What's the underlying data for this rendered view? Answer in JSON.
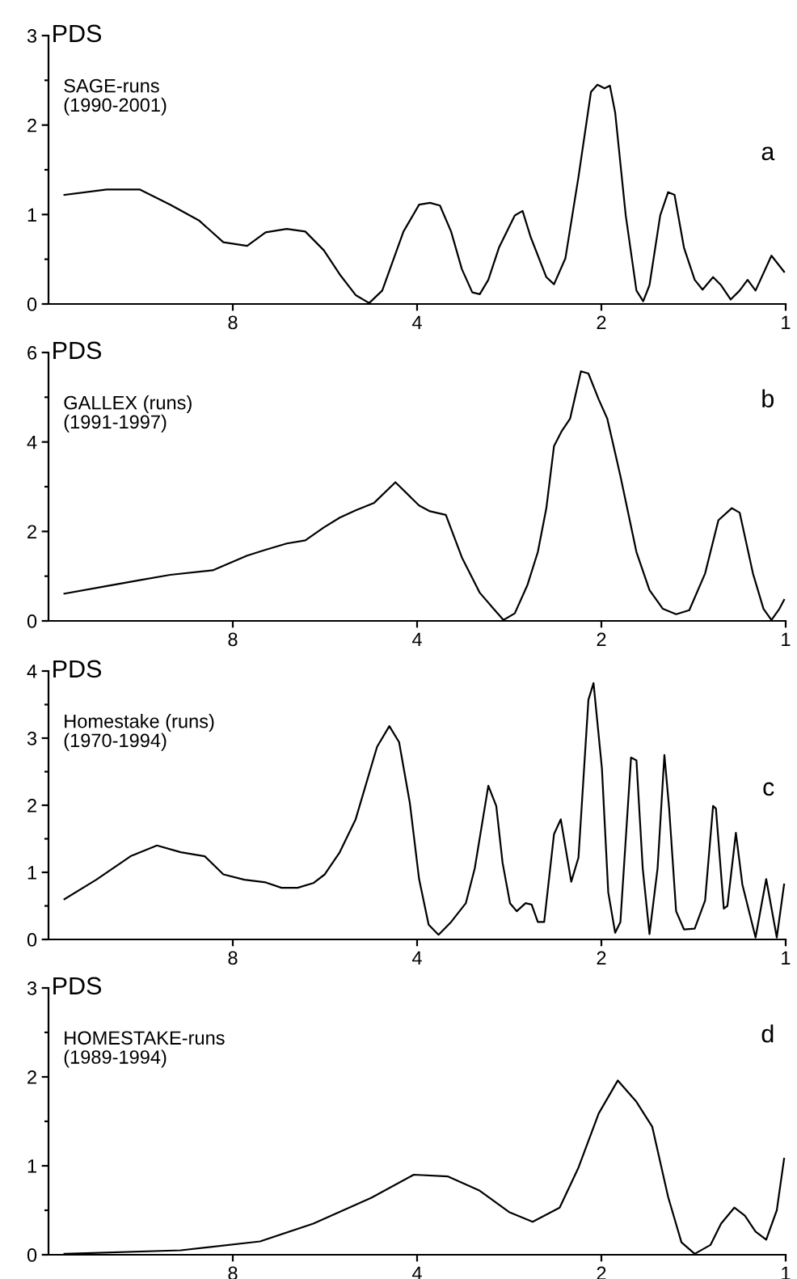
{
  "chart_data": [
    {
      "type": "line",
      "ylabel": "PDS",
      "annotations": [
        "SAGE-runs\n(1990-2001)",
        "a"
      ],
      "xlim": [
        16,
        1
      ],
      "xticks": [
        8,
        4,
        2,
        1
      ],
      "log": "x",
      "ylim": [
        0,
        3
      ],
      "yticks": [
        0,
        {
          "value": 0.5,
          "label": null
        },
        1,
        {
          "value": 1.5,
          "label": null
        },
        2,
        {
          "value": 2.5,
          "label": null
        },
        3
      ],
      "color": "#000000",
      "x": [
        15.07,
        12.85,
        11.36,
        10.12,
        9.07,
        8.29,
        7.58,
        7.07,
        6.53,
        6.09,
        5.68,
        5.35,
        5.04,
        4.79,
        4.56,
        4.21,
        3.97,
        3.81,
        3.67,
        3.52,
        3.38,
        3.25,
        3.16,
        3.06,
        2.94,
        2.77,
        2.69,
        2.61,
        2.46,
        2.39,
        2.29,
        2.18,
        2.08,
        2.03,
        1.976,
        1.937,
        1.899,
        1.825,
        1.753,
        1.709,
        1.669,
        1.603,
        1.556,
        1.519,
        1.466,
        1.408,
        1.367,
        1.314,
        1.275,
        1.23,
        1.189,
        1.154,
        1.12,
        1.055,
        1.006
      ],
      "values": [
        1.22,
        1.28,
        1.28,
        1.11,
        0.93,
        0.69,
        0.65,
        0.8,
        0.84,
        0.81,
        0.6,
        0.33,
        0.1,
        0.01,
        0.15,
        0.81,
        1.11,
        1.13,
        1.1,
        0.81,
        0.39,
        0.13,
        0.11,
        0.27,
        0.63,
        0.99,
        1.04,
        0.75,
        0.3,
        0.22,
        0.51,
        1.42,
        2.37,
        2.45,
        2.41,
        2.44,
        2.14,
        0.99,
        0.15,
        0.03,
        0.21,
        0.99,
        1.25,
        1.22,
        0.63,
        0.27,
        0.16,
        0.3,
        0.21,
        0.05,
        0.15,
        0.27,
        0.15,
        0.54,
        0.36
      ]
    },
    {
      "type": "line",
      "ylabel": "PDS",
      "annotations": [
        "GALLEX (runs)\n(1991-1997)",
        "b"
      ],
      "xlim": [
        16,
        1
      ],
      "xticks": [
        8,
        4,
        2,
        1
      ],
      "log": "x",
      "ylim": [
        0,
        6
      ],
      "yticks": [
        0,
        {
          "value": 1,
          "label": null
        },
        2,
        {
          "value": 3,
          "label": null
        },
        4,
        {
          "value": 5,
          "label": null
        },
        6
      ],
      "color": "#000000",
      "x": [
        15.07,
        12.85,
        11.36,
        10.12,
        8.63,
        7.58,
        7.07,
        6.53,
        6.09,
        5.68,
        5.35,
        5.04,
        4.7,
        4.34,
        3.97,
        3.81,
        3.59,
        3.38,
        3.16,
        3.0,
        2.89,
        2.77,
        2.64,
        2.54,
        2.46,
        2.39,
        2.32,
        2.25,
        2.16,
        2.1,
        2.02,
        1.956,
        1.862,
        1.753,
        1.669,
        1.587,
        1.51,
        1.437,
        1.354,
        1.288,
        1.225,
        1.189,
        1.131,
        1.087,
        1.055,
        1.024,
        1.006
      ],
      "values": [
        0.61,
        0.78,
        0.91,
        1.03,
        1.13,
        1.46,
        1.59,
        1.73,
        1.8,
        2.09,
        2.31,
        2.47,
        2.64,
        3.1,
        2.58,
        2.45,
        2.37,
        1.42,
        0.63,
        0.27,
        0.02,
        0.17,
        0.81,
        1.54,
        2.52,
        3.91,
        4.25,
        4.52,
        5.58,
        5.53,
        4.95,
        4.52,
        3.24,
        1.54,
        0.69,
        0.27,
        0.15,
        0.24,
        1.06,
        2.25,
        2.52,
        2.42,
        1.06,
        0.27,
        0.02,
        0.27,
        0.47
      ]
    },
    {
      "type": "line",
      "ylabel": "PDS",
      "annotations": [
        "Homestake (runs)\n(1970-1994)",
        "c"
      ],
      "xlim": [
        16,
        1
      ],
      "xticks": [
        8,
        4,
        2,
        1
      ],
      "log": "x",
      "ylim": [
        0,
        4
      ],
      "yticks": [
        0,
        {
          "value": 0.5,
          "label": null
        },
        1,
        {
          "value": 1.5,
          "label": null
        },
        2,
        {
          "value": 2.5,
          "label": null
        },
        3,
        {
          "value": 3.5,
          "label": null
        },
        4
      ],
      "color": "#000000",
      "x": [
        15.07,
        13.37,
        11.75,
        10.64,
        9.73,
        8.89,
        8.29,
        7.66,
        7.07,
        6.66,
        6.27,
        5.91,
        5.66,
        5.35,
        5.04,
        4.65,
        4.44,
        4.28,
        4.11,
        3.97,
        3.83,
        3.69,
        3.52,
        3.33,
        3.22,
        3.06,
        2.97,
        2.9,
        2.82,
        2.75,
        2.66,
        2.6,
        2.54,
        2.48,
        2.39,
        2.33,
        2.24,
        2.18,
        2.1,
        2.06,
        1.996,
        1.949,
        1.899,
        1.862,
        1.789,
        1.753,
        1.712,
        1.669,
        1.619,
        1.578,
        1.55,
        1.51,
        1.466,
        1.408,
        1.354,
        1.314,
        1.3,
        1.262,
        1.245,
        1.206,
        1.177,
        1.12,
        1.076,
        1.034,
        1.006
      ],
      "values": [
        0.6,
        0.89,
        1.24,
        1.4,
        1.3,
        1.24,
        0.97,
        0.89,
        0.85,
        0.77,
        0.77,
        0.84,
        0.97,
        1.3,
        1.79,
        2.87,
        3.18,
        2.94,
        2.03,
        0.9,
        0.22,
        0.07,
        0.26,
        0.54,
        1.06,
        2.29,
        1.99,
        1.14,
        0.54,
        0.42,
        0.54,
        0.52,
        0.26,
        0.26,
        1.57,
        1.79,
        0.86,
        1.22,
        3.57,
        3.82,
        2.55,
        0.7,
        0.1,
        0.26,
        2.71,
        2.67,
        1.06,
        0.08,
        1.06,
        2.75,
        1.95,
        0.42,
        0.15,
        0.16,
        0.58,
        1.99,
        1.95,
        0.46,
        0.5,
        1.59,
        0.82,
        0.03,
        0.9,
        0.03,
        0.82
      ]
    },
    {
      "type": "line",
      "ylabel": "PDS",
      "annotations": [
        "HOMESTAKE-runs\n(1989-1994)",
        "d"
      ],
      "xlim": [
        16,
        1
      ],
      "xticks": [
        8,
        4,
        2,
        1
      ],
      "log": "x",
      "ylim": [
        0,
        3
      ],
      "yticks": [
        0,
        {
          "value": 0.5,
          "label": null
        },
        1,
        {
          "value": 1.5,
          "label": null
        },
        2,
        {
          "value": 2.5,
          "label": null
        },
        3
      ],
      "color": "#000000",
      "x": [
        15.07,
        9.73,
        7.22,
        5.91,
        4.75,
        4.05,
        3.56,
        3.16,
        2.83,
        2.59,
        2.34,
        2.18,
        2.02,
        1.88,
        1.753,
        1.652,
        1.556,
        1.48,
        1.408,
        1.327,
        1.275,
        1.213,
        1.166,
        1.12,
        1.076,
        1.034,
        1.006
      ],
      "values": [
        0.01,
        0.05,
        0.15,
        0.35,
        0.64,
        0.9,
        0.88,
        0.72,
        0.48,
        0.37,
        0.53,
        0.98,
        1.59,
        1.96,
        1.72,
        1.44,
        0.65,
        0.14,
        0.01,
        0.11,
        0.35,
        0.53,
        0.44,
        0.26,
        0.17,
        0.5,
        1.08
      ]
    }
  ]
}
